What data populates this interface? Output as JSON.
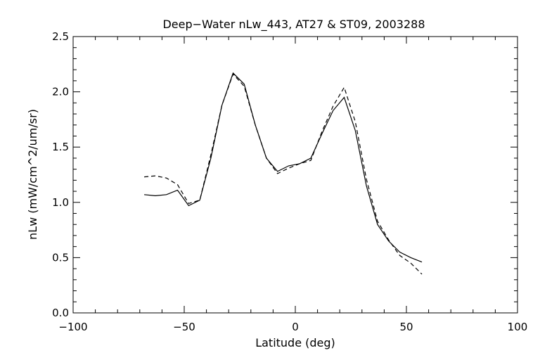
{
  "colors": {
    "background": "#ffffff",
    "foreground": "#000000"
  },
  "chart_data": {
    "type": "line",
    "title": "Deep−Water nLw_443, AT27 & ST09, 2003288",
    "xlabel": "Latitude (deg)",
    "ylabel": "nLw (mW/cm^2/um/sr)",
    "xlim": [
      -100,
      100
    ],
    "ylim": [
      0.0,
      2.5
    ],
    "x_ticks": [
      -100,
      -50,
      0,
      50,
      100
    ],
    "x_tick_labels": [
      "−100",
      "−50",
      "0",
      "50",
      "100"
    ],
    "y_ticks": [
      0.0,
      0.5,
      1.0,
      1.5,
      2.0,
      2.5
    ],
    "y_tick_labels": [
      "0.0",
      "0.5",
      "1.0",
      "1.5",
      "2.0",
      "2.5"
    ],
    "grid": false,
    "legend": "none",
    "series": [
      {
        "style": "solid",
        "color": "#000000",
        "x": [
          -68,
          -63,
          -58,
          -53,
          -48,
          -43,
          -38,
          -33,
          -28,
          -23,
          -18,
          -13,
          -8,
          -3,
          2,
          7,
          12,
          17,
          22,
          27,
          32,
          37,
          42,
          47,
          52,
          57
        ],
        "y": [
          1.07,
          1.06,
          1.07,
          1.11,
          0.97,
          1.02,
          1.4,
          1.88,
          2.17,
          2.07,
          1.7,
          1.4,
          1.28,
          1.33,
          1.35,
          1.4,
          1.62,
          1.83,
          1.95,
          1.65,
          1.15,
          0.8,
          0.65,
          0.55,
          0.5,
          0.46
        ]
      },
      {
        "style": "dashed",
        "color": "#000000",
        "x": [
          -68,
          -63,
          -58,
          -53,
          -48,
          -43,
          -38,
          -33,
          -28,
          -23,
          -18,
          -13,
          -8,
          -3,
          2,
          7,
          12,
          17,
          22,
          27,
          32,
          37,
          42,
          47,
          52,
          57
        ],
        "y": [
          1.23,
          1.24,
          1.22,
          1.16,
          0.99,
          1.02,
          1.43,
          1.88,
          2.16,
          2.05,
          1.7,
          1.4,
          1.26,
          1.31,
          1.35,
          1.38,
          1.64,
          1.87,
          2.04,
          1.73,
          1.21,
          0.83,
          0.66,
          0.52,
          0.45,
          0.35
        ]
      }
    ]
  }
}
